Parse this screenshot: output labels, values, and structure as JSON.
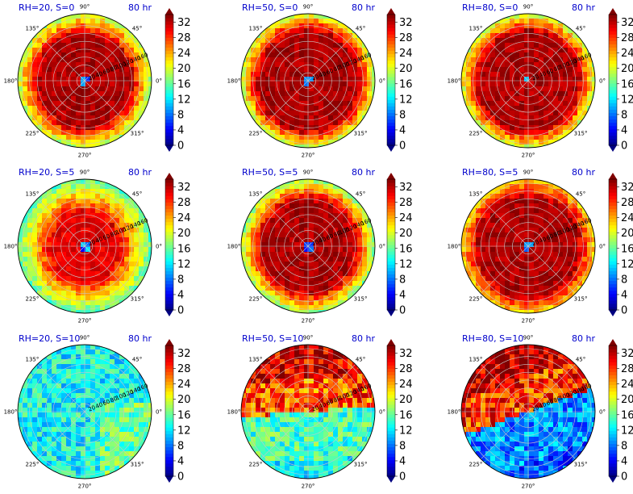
{
  "figure": {
    "time_label": "80 hr"
  },
  "chart_data": [
    {
      "type": "heatmap",
      "subtype": "polar",
      "title": "RH=20, S=0",
      "time_label": "80 hr",
      "pattern": "ring",
      "core_radius": 10,
      "inner_value": 34,
      "outer_value": 20,
      "hot_radius": 115,
      "angle_labels": [
        "90°",
        "45°",
        "0°",
        "315°",
        "270°",
        "225°",
        "180°",
        "135°"
      ],
      "radial_labels": [
        "20",
        "40",
        "60",
        "80",
        "100",
        "120",
        "140",
        "160"
      ],
      "colorbar": {
        "vmin": 0,
        "vmax": 34,
        "ticks": [
          0,
          4,
          8,
          12,
          16,
          20,
          24,
          28,
          32
        ],
        "extend": "both",
        "colormap": "jet"
      }
    },
    {
      "type": "heatmap",
      "subtype": "polar",
      "title": "RH=50, S=0",
      "time_label": "80 hr",
      "pattern": "ring",
      "core_radius": 10,
      "inner_value": 34,
      "outer_value": 21,
      "hot_radius": 125,
      "angle_labels": [
        "90°",
        "45°",
        "0°",
        "315°",
        "270°",
        "225°",
        "180°",
        "135°"
      ],
      "radial_labels": [
        "20",
        "40",
        "60",
        "80",
        "100",
        "120",
        "140",
        "160"
      ],
      "colorbar": {
        "vmin": 0,
        "vmax": 34,
        "ticks": [
          0,
          4,
          8,
          12,
          16,
          20,
          24,
          28,
          32
        ],
        "extend": "both",
        "colormap": "jet"
      }
    },
    {
      "type": "heatmap",
      "subtype": "polar",
      "title": "RH=80, S=0",
      "time_label": "80 hr",
      "pattern": "ring",
      "core_radius": 6,
      "inner_value": 34,
      "outer_value": 21,
      "hot_radius": 125,
      "angle_labels": [
        "90°",
        "45°",
        "0°",
        "315°",
        "270°",
        "225°",
        "180°",
        "135°"
      ],
      "radial_labels": [
        "20",
        "40",
        "60",
        "80",
        "100",
        "120",
        "140",
        "160"
      ],
      "colorbar": {
        "vmin": 0,
        "vmax": 34,
        "ticks": [
          0,
          4,
          8,
          12,
          16,
          20,
          24,
          28,
          32
        ],
        "extend": "both",
        "colormap": "jet"
      }
    },
    {
      "type": "heatmap",
      "subtype": "polar",
      "title": "RH=20, S=5",
      "time_label": "80 hr",
      "pattern": "ring",
      "core_radius": 12,
      "inner_value": 32,
      "outer_value": 17,
      "hot_radius": 85,
      "angle_labels": [
        "90°",
        "45°",
        "0°",
        "315°",
        "270°",
        "225°",
        "180°",
        "135°"
      ],
      "radial_labels": [
        "20",
        "40",
        "60",
        "80",
        "100",
        "120",
        "140",
        "160"
      ],
      "colorbar": {
        "vmin": 0,
        "vmax": 34,
        "ticks": [
          0,
          4,
          8,
          12,
          16,
          20,
          24,
          28,
          32
        ],
        "extend": "both",
        "colormap": "jet"
      }
    },
    {
      "type": "heatmap",
      "subtype": "polar",
      "title": "RH=50, S=5",
      "time_label": "80 hr",
      "pattern": "ring",
      "core_radius": 16,
      "inner_value": 34,
      "outer_value": 19,
      "hot_radius": 115,
      "angle_labels": [
        "90°",
        "45°",
        "0°",
        "315°",
        "270°",
        "225°",
        "180°",
        "135°"
      ],
      "radial_labels": [
        "20",
        "40",
        "60",
        "80",
        "100",
        "120",
        "140",
        "160"
      ],
      "colorbar": {
        "vmin": 0,
        "vmax": 34,
        "ticks": [
          0,
          4,
          8,
          12,
          16,
          20,
          24,
          28,
          32
        ],
        "extend": "both",
        "colormap": "jet"
      }
    },
    {
      "type": "heatmap",
      "subtype": "polar",
      "title": "RH=80, S=5",
      "time_label": "80 hr",
      "pattern": "ring",
      "core_radius": 10,
      "inner_value": 34,
      "outer_value": 24,
      "hot_radius": 125,
      "angle_labels": [
        "90°",
        "45°",
        "0°",
        "315°",
        "270°",
        "225°",
        "180°",
        "135°"
      ],
      "radial_labels": [
        "20",
        "40",
        "60",
        "80",
        "100",
        "120",
        "140",
        "160"
      ],
      "colorbar": {
        "vmin": 0,
        "vmax": 34,
        "ticks": [
          0,
          4,
          8,
          12,
          16,
          20,
          24,
          28,
          32
        ],
        "extend": "both",
        "colormap": "jet"
      }
    },
    {
      "type": "heatmap",
      "subtype": "polar",
      "title": "RH=20, S=10",
      "time_label": "80 hr",
      "pattern": "cold",
      "base_value": 13,
      "angle_labels": [
        "90°",
        "45°",
        "0°",
        "315°",
        "270°",
        "225°",
        "180°",
        "135°"
      ],
      "radial_labels": [
        "20",
        "40",
        "60",
        "80",
        "100",
        "120",
        "140",
        "160"
      ],
      "colorbar": {
        "vmin": 0,
        "vmax": 34,
        "ticks": [
          0,
          4,
          8,
          12,
          16,
          20,
          24,
          28,
          32
        ],
        "extend": "both",
        "colormap": "jet"
      }
    },
    {
      "type": "heatmap",
      "subtype": "polar",
      "title": "RH=50, S=10",
      "time_label": "80 hr",
      "pattern": "split",
      "split_angle_deg": 5,
      "warm_value": 27,
      "cool_value": 15,
      "angle_labels": [
        "90°",
        "45°",
        "0°",
        "315°",
        "270°",
        "225°",
        "180°",
        "135°"
      ],
      "radial_labels": [
        "20",
        "40",
        "60",
        "80",
        "100",
        "120",
        "140",
        "160"
      ],
      "colorbar": {
        "vmin": 0,
        "vmax": 34,
        "ticks": [
          0,
          4,
          8,
          12,
          16,
          20,
          24,
          28,
          32
        ],
        "extend": "both",
        "colormap": "jet"
      }
    },
    {
      "type": "heatmap",
      "subtype": "polar",
      "title": "RH=80, S=10",
      "time_label": "80 hr",
      "pattern": "split",
      "split_angle_deg": 20,
      "warm_value": 28,
      "cool_value": 9,
      "angle_labels": [
        "90°",
        "45°",
        "0°",
        "315°",
        "270°",
        "225°",
        "180°",
        "135°"
      ],
      "radial_labels": [
        "20",
        "40",
        "60",
        "80",
        "100",
        "120",
        "140",
        "160"
      ],
      "colorbar": {
        "vmin": 0,
        "vmax": 34,
        "ticks": [
          0,
          4,
          8,
          12,
          16,
          20,
          24,
          28,
          32
        ],
        "extend": "both",
        "colormap": "jet"
      }
    }
  ]
}
